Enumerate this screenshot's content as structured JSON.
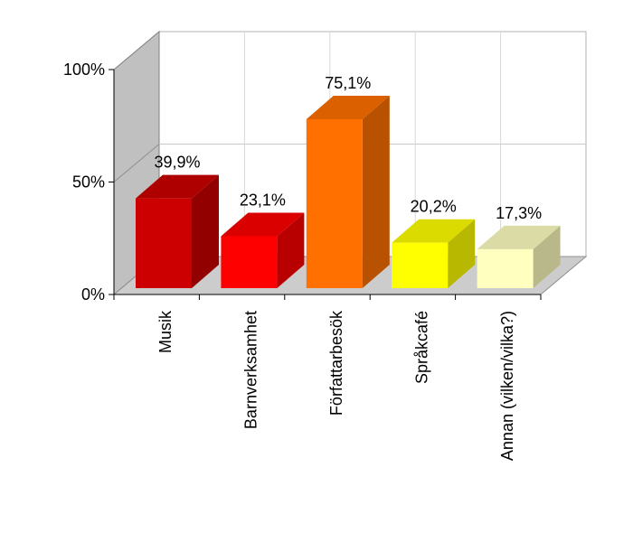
{
  "chart_data": {
    "type": "bar",
    "categories": [
      "Musik",
      "Barnverksamhet",
      "Författarbesök",
      "Språkcafé",
      "Annan (vilken/vilka?)"
    ],
    "values": [
      39.9,
      23.1,
      75.1,
      20.2,
      17.3
    ],
    "value_labels": [
      "39,9%",
      "23,1%",
      "75,1%",
      "20,2%",
      "17,3%"
    ],
    "bar_colors": [
      "#cc0000",
      "#ff0000",
      "#ff7000",
      "#ffff00",
      "#ffffc0"
    ],
    "ylim": [
      0,
      100
    ],
    "yticks": [
      0,
      50,
      100
    ],
    "ytick_labels": [
      "0%",
      "50%",
      "100%"
    ],
    "grid": true,
    "style": "3d",
    "title": "",
    "xlabel": "",
    "ylabel": ""
  }
}
